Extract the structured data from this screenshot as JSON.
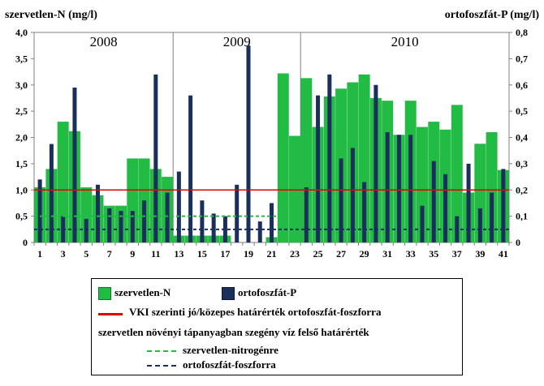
{
  "chart_data": {
    "type": "bar",
    "left_axis_title": "szervetlen-N (mg/l)",
    "right_axis_title": "ortofoszfát-P (mg/l)",
    "left_ylim": [
      0,
      4.0
    ],
    "right_ylim": [
      0,
      0.8
    ],
    "left_ticks": [
      "0",
      "0,5",
      "1,0",
      "1,5",
      "2,0",
      "2,5",
      "3,0",
      "3,5",
      "4,0"
    ],
    "right_ticks": [
      "0",
      "0,1",
      "0,2",
      "0,3",
      "0,4",
      "0,5",
      "0,6",
      "0,7",
      "0,8"
    ],
    "x_tick_labels": [
      "1",
      "3",
      "5",
      "7",
      "9",
      "11",
      "13",
      "15",
      "17",
      "19",
      "21",
      "23",
      "25",
      "27",
      "29",
      "31",
      "33",
      "35",
      "37",
      "39",
      "41"
    ],
    "years": [
      {
        "label": "2008",
        "start": 1,
        "end": 12
      },
      {
        "label": "2009",
        "start": 13,
        "end": 23
      },
      {
        "label": "2010",
        "start": 24,
        "end": 41
      }
    ],
    "categories": [
      1,
      2,
      3,
      4,
      5,
      6,
      7,
      8,
      9,
      10,
      11,
      12,
      13,
      14,
      15,
      16,
      17,
      18,
      19,
      20,
      21,
      22,
      23,
      24,
      25,
      26,
      27,
      28,
      29,
      30,
      31,
      32,
      33,
      34,
      35,
      36,
      37,
      38,
      39,
      40,
      41
    ],
    "series": [
      {
        "name": "szervetlen-N",
        "axis": "left",
        "color": "#22bb44",
        "values": [
          1.05,
          1.4,
          2.3,
          2.12,
          1.05,
          0.9,
          0.7,
          0.7,
          1.6,
          1.6,
          1.4,
          1.25,
          0.13,
          0.13,
          0.13,
          0.13,
          0.13,
          0.0,
          0.0,
          0.0,
          0.1,
          3.22,
          2.03,
          3.13,
          2.2,
          2.78,
          2.93,
          3.05,
          3.2,
          2.75,
          2.7,
          2.05,
          2.7,
          2.2,
          2.3,
          2.15,
          2.62,
          0.95,
          1.88,
          2.1,
          1.38
        ]
      },
      {
        "name": "ortofoszfát-P",
        "axis": "right",
        "color": "#1a2f5c",
        "values": [
          0.24,
          0.375,
          0.1,
          0.59,
          0.09,
          0.22,
          0.13,
          0.12,
          0.12,
          0.16,
          0.64,
          0.19,
          0.27,
          0.56,
          0.16,
          0.11,
          0.1,
          0.22,
          0.75,
          0.08,
          0.15,
          0.0,
          0.0,
          0.21,
          0.56,
          0.64,
          0.32,
          0.36,
          0.23,
          0.6,
          0.42,
          0.41,
          0.41,
          0.14,
          0.31,
          0.26,
          0.1,
          0.3,
          0.13,
          0.19,
          0.28
        ]
      }
    ],
    "reference_lines": [
      {
        "name": "VKI szerinti jó/közepes határérték ortofoszfát-foszforra",
        "axis": "right",
        "value": 0.2,
        "color": "#e00000",
        "style": "solid"
      },
      {
        "name": "szervetlen-nitrogénre",
        "axis": "left",
        "value": 0.5,
        "color": "#22bb44",
        "style": "dashed",
        "from": 1,
        "to": 23
      },
      {
        "name": "ortofoszfát-foszforra",
        "axis": "right",
        "value": 0.05,
        "color": "#1a2f5c",
        "style": "dashed",
        "from": 1,
        "to": 41
      }
    ],
    "grid": false,
    "legend_position": "bottom"
  },
  "legend": {
    "n_label": "szervetlen-N",
    "p_label": "ortofoszfát-P",
    "vki_label": "VKI szerinti jó/közepes határérték ortofoszfát-foszforra",
    "group_title": "szervetlen növényi tápanyagban szegény víz felső határérték",
    "n_threshold_label": "szervetlen-nitrogénre",
    "p_threshold_label": "ortofoszfát-foszforra"
  }
}
